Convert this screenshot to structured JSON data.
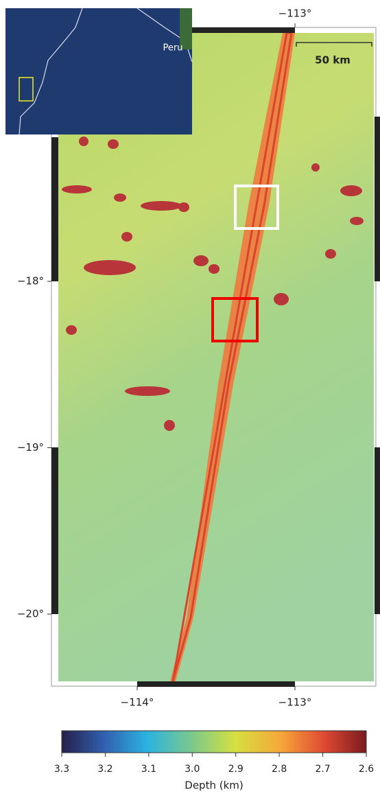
{
  "map": {
    "lon_ticks_top": [
      {
        "value": -113,
        "label": "−113°"
      }
    ],
    "lon_ticks_bottom": [
      {
        "value": -114,
        "label": "−114°"
      },
      {
        "value": -113,
        "label": "−113°"
      }
    ],
    "lat_ticks": [
      {
        "value": -18,
        "label": "−18°"
      },
      {
        "value": -19,
        "label": "−19°"
      },
      {
        "value": -20,
        "label": "−20°"
      }
    ],
    "inset_label": "Peru",
    "scale_bar": "50 km"
  },
  "colorbar": {
    "label": "Depth (km)",
    "lim": [
      3.3,
      2.6
    ],
    "ticks": [
      3.3,
      3.2,
      3.1,
      {
        "value": 3,
        "label": "3.0"
      },
      2.9,
      2.8,
      2.7,
      2.6
    ]
  }
}
